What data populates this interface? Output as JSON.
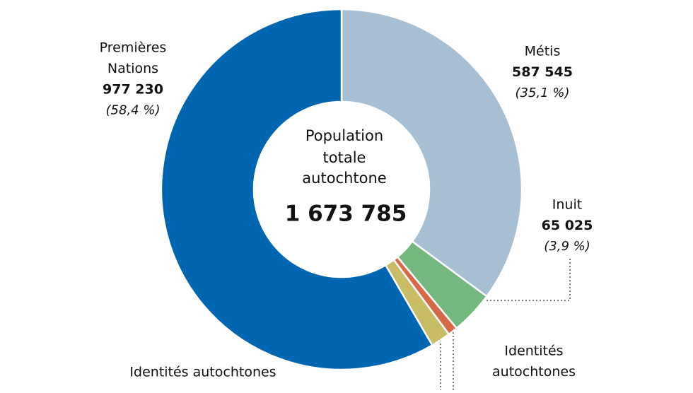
{
  "chart_data": {
    "type": "donut",
    "center_title_lines": [
      "Population",
      "totale",
      "autochtone"
    ],
    "total_label": "1 673 785",
    "categories": [
      [
        "Métis"
      ],
      [
        "Inuit"
      ],
      [
        "Identités",
        "autochtones"
      ],
      [
        "Identités autochtones"
      ],
      [
        "Premières",
        "Nations"
      ]
    ],
    "values": [
      587545,
      65025,
      14500,
      29485,
      977230
    ],
    "value_labels": [
      "587 545",
      "65 025",
      null,
      null,
      "977 230"
    ],
    "share_labels": [
      "(35,1 %)",
      "(3,9 %)",
      null,
      null,
      "(58,4 %)"
    ],
    "colors": [
      "#a6bfd3",
      "#74b87f",
      "#d7694b",
      "#c9bc67",
      "#0066b2"
    ]
  }
}
